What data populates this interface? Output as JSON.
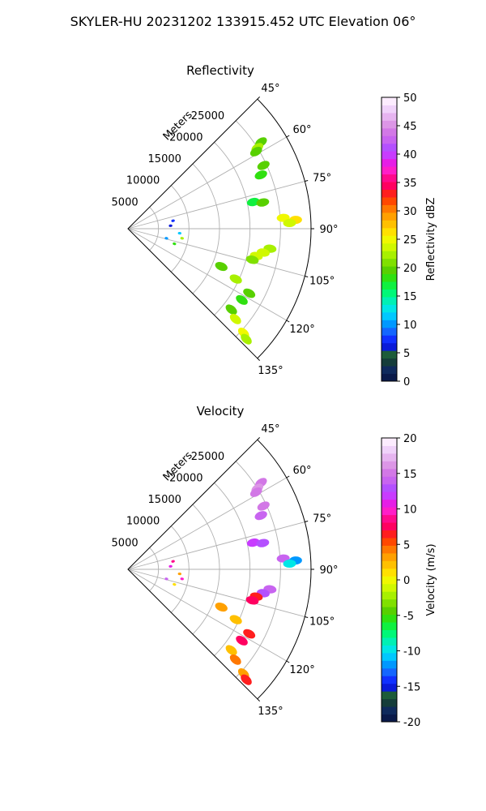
{
  "figure": {
    "suptitle": "SKYLER-HU  20231202  133915.452 UTC Elevation 06°"
  },
  "chart_data": [
    {
      "type": "heatmap",
      "projection": "polar-sector",
      "title": "Reflectivity",
      "range_label": "Meters",
      "range_ticks": [
        5000,
        10000,
        15000,
        20000,
        25000
      ],
      "range_max": 30000,
      "azimuth_range": [
        45,
        135
      ],
      "azimuth_ticks": [
        "45°",
        "60°",
        "75°",
        "90°",
        "105°",
        "120°",
        "135°"
      ],
      "colorbar": {
        "label": "Reflectivity dBZ",
        "min": 0,
        "max": 50,
        "ticks": [
          0,
          5,
          10,
          15,
          20,
          25,
          30,
          35,
          40,
          45,
          50
        ],
        "colors": [
          "#0a1a4a",
          "#0f2a5c",
          "#153d3a",
          "#1d5c3a",
          "#0a1ad8",
          "#1030ff",
          "#1466ff",
          "#0098ff",
          "#00c8ff",
          "#00e6e6",
          "#00f0b4",
          "#00f878",
          "#10f040",
          "#30e010",
          "#58d000",
          "#80e000",
          "#a8f000",
          "#d0f800",
          "#f0f800",
          "#ffe000",
          "#ffc000",
          "#ffa000",
          "#ff7800",
          "#ff4800",
          "#ff1e1e",
          "#ff0060",
          "#ff0a8c",
          "#ff1ec8",
          "#e61ee6",
          "#c83cff",
          "#b450ff",
          "#c864f0",
          "#d278e6",
          "#dc96e6",
          "#e6b4f0",
          "#f0d2fa",
          "#fcecfe"
        ],
        "gates": [
          {
            "az": 57,
            "r": 26000,
            "v": 20
          },
          {
            "az": 58,
            "r": 25000,
            "v": 22
          },
          {
            "az": 59,
            "r": 24500,
            "v": 19
          },
          {
            "az": 65,
            "r": 24500,
            "v": 20
          },
          {
            "az": 68,
            "r": 23500,
            "v": 18
          },
          {
            "az": 78,
            "r": 21000,
            "v": 17
          },
          {
            "az": 79,
            "r": 22500,
            "v": 19
          },
          {
            "az": 86,
            "r": 25500,
            "v": 25
          },
          {
            "az": 87,
            "r": 27500,
            "v": 27
          },
          {
            "az": 88,
            "r": 26500,
            "v": 24
          },
          {
            "az": 98,
            "r": 23500,
            "v": 22
          },
          {
            "az": 100,
            "r": 22500,
            "v": 24
          },
          {
            "az": 102,
            "r": 21500,
            "v": 23
          },
          {
            "az": 104,
            "r": 21000,
            "v": 21
          },
          {
            "az": 112,
            "r": 16500,
            "v": 19
          },
          {
            "az": 115,
            "r": 19500,
            "v": 22
          },
          {
            "az": 118,
            "r": 22500,
            "v": 20
          },
          {
            "az": 122,
            "r": 22000,
            "v": 18
          },
          {
            "az": 128,
            "r": 21500,
            "v": 19
          },
          {
            "az": 130,
            "r": 23000,
            "v": 23
          },
          {
            "az": 132,
            "r": 25500,
            "v": 25
          },
          {
            "az": 133,
            "r": 26500,
            "v": 22
          },
          {
            "az": 80,
            "r": 7500,
            "v": 8
          },
          {
            "az": 86,
            "r": 7000,
            "v": 6
          },
          {
            "az": 95,
            "r": 8500,
            "v": 12
          },
          {
            "az": 100,
            "r": 9000,
            "v": 22
          },
          {
            "az": 104,
            "r": 6500,
            "v": 10
          },
          {
            "az": 108,
            "r": 8000,
            "v": 18
          }
        ]
      }
    },
    {
      "type": "heatmap",
      "projection": "polar-sector",
      "title": "Velocity",
      "range_label": "Meters",
      "range_ticks": [
        5000,
        10000,
        15000,
        20000,
        25000
      ],
      "range_max": 30000,
      "azimuth_range": [
        45,
        135
      ],
      "azimuth_ticks": [
        "45°",
        "60°",
        "75°",
        "90°",
        "105°",
        "120°",
        "135°"
      ],
      "colorbar": {
        "label": "Velocity (m/s)",
        "min": -20,
        "max": 20,
        "ticks": [
          -20,
          -15,
          -10,
          -5,
          0,
          5,
          10,
          15,
          20
        ],
        "colors": [
          "#0a1a4a",
          "#0f2a5c",
          "#153d3a",
          "#1d5c3a",
          "#0a1ad8",
          "#1030ff",
          "#1466ff",
          "#0098ff",
          "#00c8ff",
          "#00e6e6",
          "#00f0b4",
          "#00f878",
          "#10f040",
          "#30e010",
          "#58d000",
          "#80e000",
          "#a8f000",
          "#d0f800",
          "#f0f800",
          "#ffe000",
          "#ffc000",
          "#ffa000",
          "#ff7800",
          "#ff4800",
          "#ff1e1e",
          "#ff0060",
          "#ff0a8c",
          "#ff1ec8",
          "#e61ee6",
          "#c83cff",
          "#b450ff",
          "#c864f0",
          "#d278e6",
          "#dc96e6",
          "#e6b4f0",
          "#f0d2fa",
          "#fcecfe"
        ],
        "gates": [
          {
            "az": 57,
            "r": 26000,
            "v": 15
          },
          {
            "az": 58,
            "r": 25000,
            "v": 16
          },
          {
            "az": 59,
            "r": 24500,
            "v": 15
          },
          {
            "az": 65,
            "r": 24500,
            "v": 15
          },
          {
            "az": 68,
            "r": 23500,
            "v": 14
          },
          {
            "az": 78,
            "r": 21000,
            "v": 12
          },
          {
            "az": 79,
            "r": 22500,
            "v": 13
          },
          {
            "az": 86,
            "r": 25500,
            "v": 14
          },
          {
            "az": 87,
            "r": 27500,
            "v": -12
          },
          {
            "az": 88,
            "r": 26500,
            "v": -10
          },
          {
            "az": 98,
            "r": 23500,
            "v": 14
          },
          {
            "az": 100,
            "r": 22500,
            "v": 13
          },
          {
            "az": 102,
            "r": 21500,
            "v": 7
          },
          {
            "az": 104,
            "r": 21000,
            "v": 8
          },
          {
            "az": 112,
            "r": 16500,
            "v": 3
          },
          {
            "az": 115,
            "r": 19500,
            "v": 2
          },
          {
            "az": 118,
            "r": 22500,
            "v": 6
          },
          {
            "az": 122,
            "r": 22000,
            "v": 8
          },
          {
            "az": 128,
            "r": 21500,
            "v": 2
          },
          {
            "az": 130,
            "r": 23000,
            "v": 4
          },
          {
            "az": 132,
            "r": 25500,
            "v": 3
          },
          {
            "az": 133,
            "r": 26500,
            "v": 6
          },
          {
            "az": 80,
            "r": 7500,
            "v": 9
          },
          {
            "az": 86,
            "r": 7000,
            "v": 11
          },
          {
            "az": 95,
            "r": 8500,
            "v": 3
          },
          {
            "az": 100,
            "r": 9000,
            "v": 10
          },
          {
            "az": 104,
            "r": 6500,
            "v": 14
          },
          {
            "az": 108,
            "r": 8000,
            "v": 1
          }
        ]
      }
    }
  ]
}
